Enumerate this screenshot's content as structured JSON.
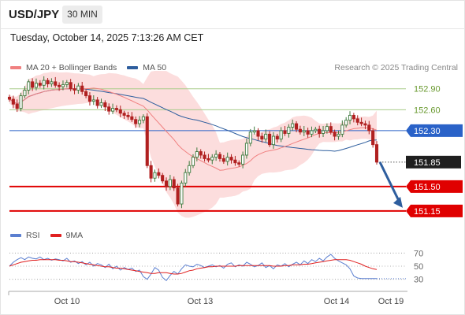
{
  "header": {
    "symbol": "USD/JPY",
    "timeframe": "30 MIN",
    "datetime": "Tuesday, October 14, 2025 7:13:26 AM CET"
  },
  "legend": {
    "main": [
      {
        "label": "MA 20 + Bollinger Bands",
        "color": "#f08080"
      },
      {
        "label": "MA 50",
        "color": "#2e5e9e"
      }
    ],
    "rsi": [
      {
        "label": "RSI",
        "color": "#5b7fd0"
      },
      {
        "label": "9MA",
        "color": "#e02020"
      }
    ],
    "credit": "Research © 2025 Trading Central"
  },
  "colors": {
    "up_candle": "#3e7a3e",
    "down_candle": "#b02020",
    "bollinger_fill": "#fcd9d9",
    "ma20": "#f08080",
    "ma50": "#2e5e9e",
    "resistance": "#a8cc88",
    "pivot": "#2a62c8",
    "support": "#e00000",
    "arrow": "#2e5e9e"
  },
  "chart_data": {
    "type": "candlestick",
    "x_ticks": [
      "Oct 10",
      "Oct 13",
      "Oct 14",
      "Oct 19"
    ],
    "ylim": [
      151.07,
      153.1
    ],
    "levels": [
      {
        "value": 152.9,
        "label": "152.90",
        "kind": "resistance"
      },
      {
        "value": 152.6,
        "label": "152.60",
        "kind": "resistance"
      },
      {
        "value": 152.3,
        "label": "152.30",
        "kind": "pivot"
      },
      {
        "value": 151.85,
        "label": "151.85",
        "kind": "last"
      },
      {
        "value": 151.5,
        "label": "151.50",
        "kind": "support"
      },
      {
        "value": 151.15,
        "label": "151.15",
        "kind": "support"
      }
    ],
    "close_path": [
      152.75,
      152.68,
      152.62,
      152.8,
      152.88,
      153.0,
      152.92,
      152.98,
      152.95,
      153.02,
      152.97,
      153.0,
      152.95,
      152.93,
      152.96,
      152.99,
      152.9,
      152.88,
      152.94,
      152.86,
      152.8,
      152.72,
      152.74,
      152.66,
      152.7,
      152.64,
      152.58,
      152.62,
      152.6,
      152.55,
      152.52,
      152.5,
      152.46,
      152.4,
      152.45,
      152.5,
      151.8,
      151.62,
      151.7,
      151.66,
      151.58,
      151.5,
      151.6,
      151.48,
      151.25,
      151.55,
      151.7,
      151.8,
      151.92,
      152.0,
      151.95,
      151.9,
      151.88,
      151.92,
      151.96,
      151.9,
      151.86,
      151.92,
      151.88,
      151.84,
      151.82,
      151.95,
      152.12,
      152.28,
      152.3,
      152.22,
      152.18,
      152.25,
      152.1,
      152.22,
      152.18,
      152.3,
      152.26,
      152.35,
      152.4,
      152.32,
      152.28,
      152.3,
      152.25,
      152.3,
      152.32,
      152.26,
      152.3,
      152.36,
      152.28,
      152.22,
      152.25,
      152.38,
      152.45,
      152.52,
      152.47,
      152.42,
      152.4,
      152.38,
      152.3,
      152.1,
      151.85
    ],
    "rsi": {
      "ylim": [
        20,
        80
      ],
      "ticks": [
        70,
        50,
        30
      ],
      "values": [
        50,
        56,
        60,
        63,
        60,
        64,
        62,
        61,
        64,
        60,
        62,
        59,
        61,
        60,
        58,
        62,
        56,
        58,
        54,
        57,
        52,
        56,
        50,
        54,
        52,
        48,
        53,
        46,
        50,
        44,
        48,
        45,
        47,
        42,
        44,
        34,
        30,
        38,
        48,
        44,
        33,
        28,
        36,
        42,
        38,
        46,
        52,
        50,
        49,
        53,
        51,
        48,
        50,
        52,
        49,
        51,
        47,
        53,
        55,
        49,
        52,
        50,
        56,
        53,
        49,
        51,
        55,
        48,
        51,
        46,
        52,
        50,
        54,
        49,
        53,
        56,
        52,
        58,
        54,
        60,
        57,
        62,
        58,
        64,
        68,
        62,
        58,
        55,
        52,
        46,
        35,
        32,
        31,
        31,
        31,
        31,
        31
      ],
      "ma9": [
        50,
        52,
        54,
        56,
        57,
        58,
        59,
        59,
        60,
        60,
        60,
        60,
        60,
        59,
        59,
        58,
        57,
        57,
        56,
        55,
        54,
        53,
        52,
        51,
        50,
        49,
        49,
        48,
        47,
        47,
        46,
        45,
        44,
        43,
        42,
        41,
        40,
        39,
        39,
        40,
        40,
        40,
        39,
        38,
        38,
        39,
        41,
        43,
        44,
        46,
        47,
        48,
        49,
        49,
        50,
        50,
        50,
        50,
        50,
        50,
        51,
        51,
        51,
        51,
        51,
        51,
        51,
        51,
        51,
        50,
        50,
        50,
        51,
        51,
        52,
        52,
        52,
        53,
        53,
        54,
        55,
        56,
        57,
        58,
        59,
        60,
        60,
        60,
        60,
        59,
        57,
        55,
        53,
        50,
        48,
        46,
        45
      ]
    }
  }
}
